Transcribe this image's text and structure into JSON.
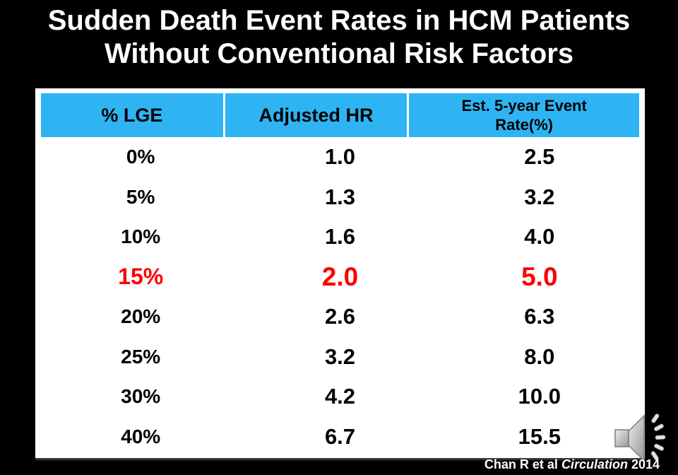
{
  "title": {
    "line1": "Sudden Death Event Rates in HCM Patients",
    "line2": "Without Conventional Risk Factors"
  },
  "table": {
    "headers": [
      "% LGE",
      "Adjusted HR",
      "Est. 5-year Event Rate(%)"
    ],
    "rows": [
      {
        "lge": "0%",
        "hr": "1.0",
        "rate": "2.5",
        "highlight": false
      },
      {
        "lge": "5%",
        "hr": "1.3",
        "rate": "3.2",
        "highlight": false
      },
      {
        "lge": "10%",
        "hr": "1.6",
        "rate": "4.0",
        "highlight": false
      },
      {
        "lge": "15%",
        "hr": "2.0",
        "rate": "5.0",
        "highlight": true
      },
      {
        "lge": "20%",
        "hr": "2.6",
        "rate": "6.3",
        "highlight": false
      },
      {
        "lge": "25%",
        "hr": "3.2",
        "rate": "8.0",
        "highlight": false
      },
      {
        "lge": "30%",
        "hr": "4.2",
        "rate": "10.0",
        "highlight": false
      },
      {
        "lge": "40%",
        "hr": "6.7",
        "rate": "15.5",
        "highlight": false
      }
    ]
  },
  "chart_data": {
    "type": "table",
    "title": "Sudden Death Event Rates in HCM Patients Without Conventional Risk Factors",
    "columns": [
      "% LGE",
      "Adjusted HR",
      "Est. 5-year Event Rate(%)"
    ],
    "rows": [
      [
        "0%",
        "1.0",
        "2.5"
      ],
      [
        "5%",
        "1.3",
        "3.2"
      ],
      [
        "10%",
        "1.6",
        "4.0"
      ],
      [
        "15%",
        "2.0",
        "5.0"
      ],
      [
        "20%",
        "2.6",
        "6.3"
      ],
      [
        "25%",
        "3.2",
        "8.0"
      ],
      [
        "30%",
        "4.2",
        "10.0"
      ],
      [
        "40%",
        "6.7",
        "15.5"
      ]
    ],
    "highlighted_row": "15%"
  },
  "citation": {
    "prefix": "Chan R et al ",
    "journal": "Circulation",
    "year": " 2014"
  },
  "icons": {
    "speaker": "speaker-audio-icon"
  },
  "colors": {
    "background": "#000000",
    "table_bg": "#FFFFFF",
    "header_bg": "#2EB4F3",
    "header_text": "#000000",
    "body_text": "#000000",
    "highlight": "#FA0000",
    "title_text": "#FFFFFF"
  }
}
